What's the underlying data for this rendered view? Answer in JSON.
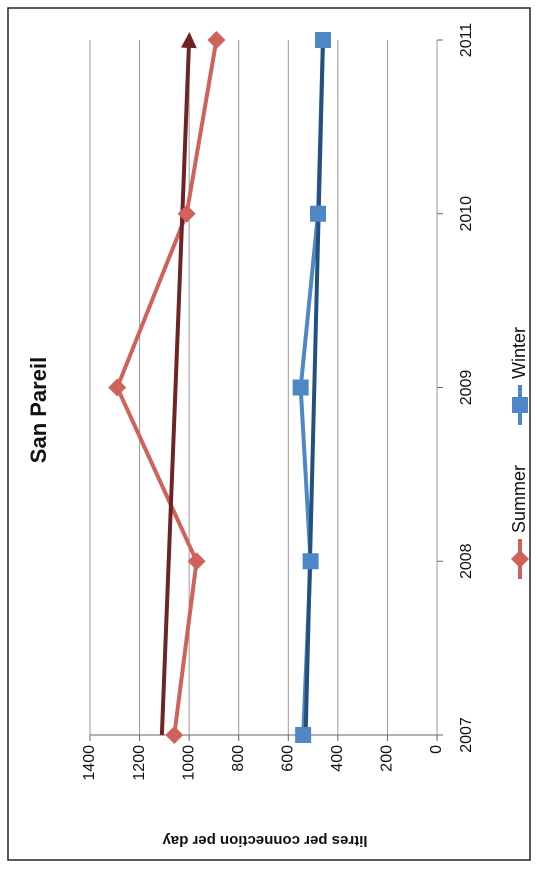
{
  "chart_data": {
    "type": "line",
    "title": "San Pareil",
    "y_label": "litres per connection per day",
    "categories": [
      "2007",
      "2008",
      "2009",
      "2010",
      "2011"
    ],
    "series": [
      {
        "name": "Summer",
        "color": "#d0625c",
        "marker": "diamond",
        "values": [
          1060,
          970,
          1290,
          1010,
          890
        ]
      },
      {
        "name": "Winter",
        "color": "#4f86c6",
        "marker": "square",
        "values": [
          540,
          510,
          550,
          480,
          460
        ]
      }
    ],
    "trendlines": [
      {
        "color": "#6e2424",
        "values": [
          1110,
          1000
        ]
      },
      {
        "color": "#23507e",
        "values": [
          530,
          460
        ]
      }
    ],
    "ylim": [
      0,
      1400
    ],
    "yticks": [
      0,
      200,
      400,
      600,
      800,
      1000,
      1200,
      1400
    ],
    "grid": true
  }
}
